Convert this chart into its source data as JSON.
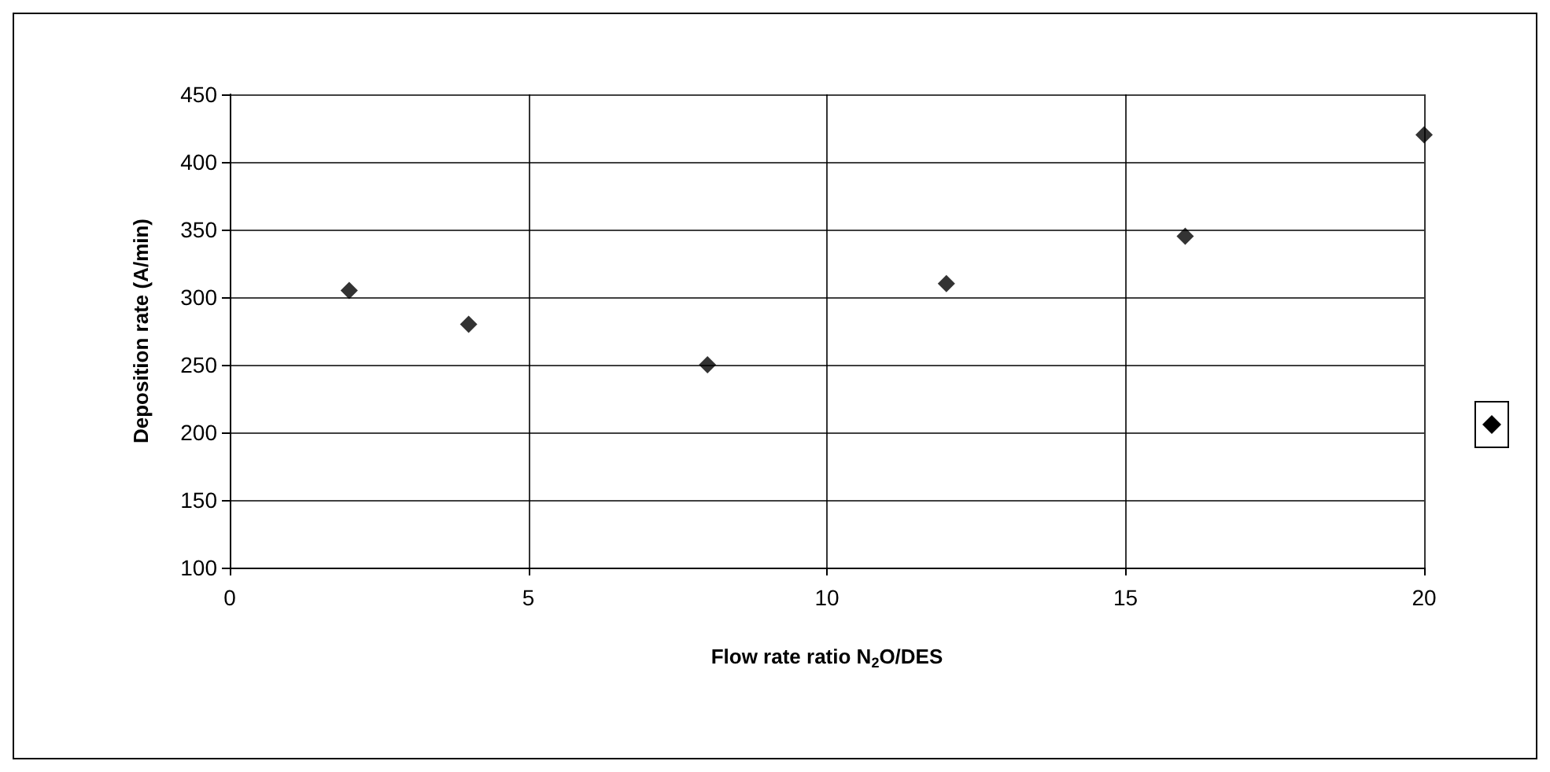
{
  "chart_data": {
    "type": "scatter",
    "xlabel": "Flow rate ratio N$_{2}$O/DES",
    "ylabel": "Deposition rate (A/min)",
    "x": [
      2,
      4,
      8,
      12,
      16,
      20
    ],
    "series": [
      {
        "color": "#000000",
        "values": [
          305,
          280,
          250,
          310,
          345,
          420
        ]
      }
    ],
    "xlim": [
      0,
      20
    ],
    "xticks": [
      0,
      5,
      10,
      15,
      20
    ],
    "ylim": [
      100,
      450
    ],
    "yticks": [
      100,
      150,
      200,
      250,
      300,
      350,
      400,
      450
    ],
    "grid": true,
    "marker": "diamond"
  }
}
